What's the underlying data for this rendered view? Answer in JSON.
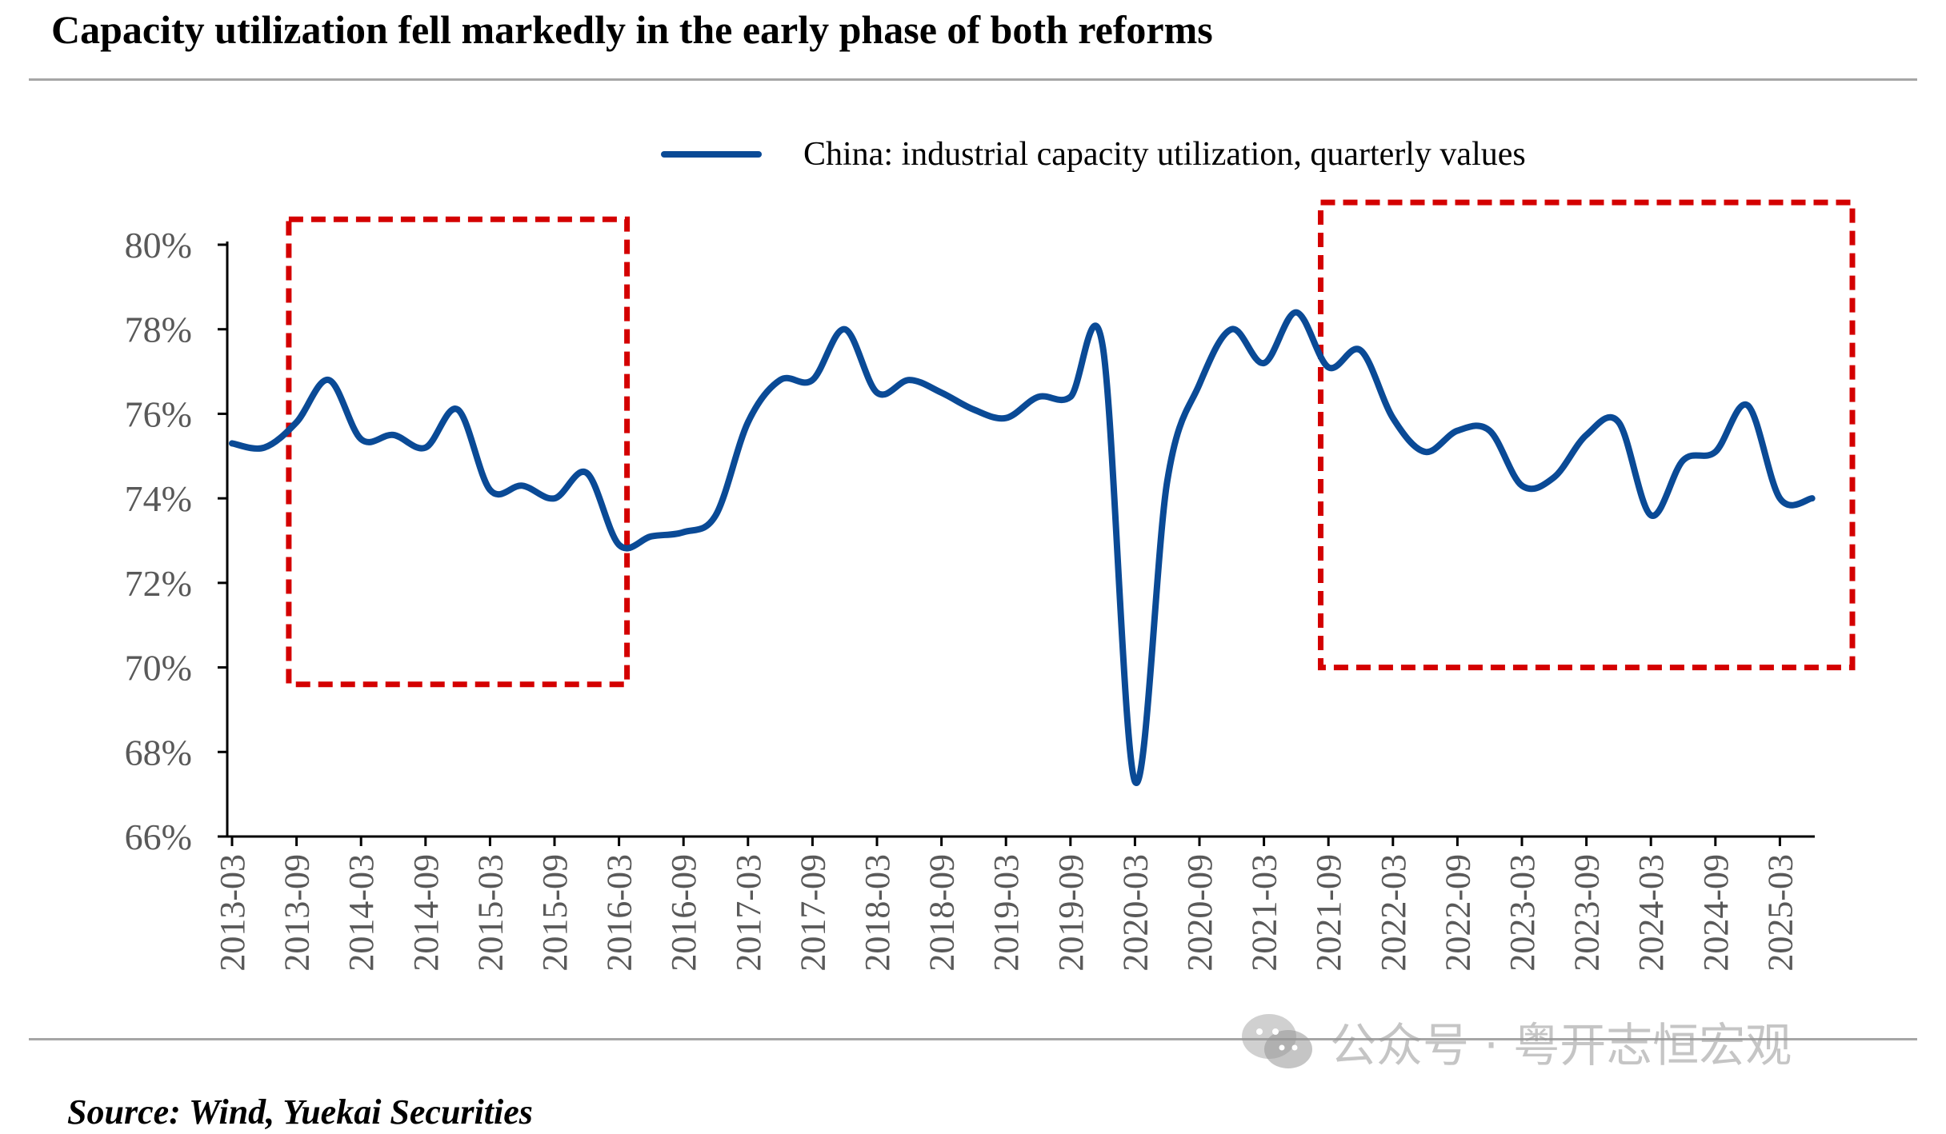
{
  "title": "Capacity utilization fell markedly in the early phase of both reforms",
  "source": "Source: Wind, Yuekai Securities",
  "watermark": {
    "icon": "wechat-icon",
    "text": "公众号 · 粤开志恒宏观"
  },
  "colors": {
    "line": "#0a4a96",
    "highlight": "#d40000",
    "axis": "#000000",
    "tick_text": "#595959"
  },
  "chart_data": {
    "type": "line",
    "ylim": [
      66,
      80
    ],
    "yticks": [
      "66%",
      "68%",
      "70%",
      "72%",
      "74%",
      "76%",
      "78%",
      "80%"
    ],
    "yticks_values": [
      66,
      68,
      70,
      72,
      74,
      76,
      78,
      80
    ],
    "xticks": [
      "2013-03",
      "2013-09",
      "2014-03",
      "2014-09",
      "2015-03",
      "2015-09",
      "2016-03",
      "2016-09",
      "2017-03",
      "2017-09",
      "2018-03",
      "2018-09",
      "2019-03",
      "2019-09",
      "2020-03",
      "2020-09",
      "2021-03",
      "2021-09",
      "2022-03",
      "2022-09",
      "2023-03",
      "2023-09",
      "2024-03",
      "2024-09",
      "2025-03"
    ],
    "legend": {
      "position": "top",
      "label": "China: industrial capacity utilization, quarterly values"
    },
    "grid": false,
    "series": [
      {
        "name": "China: industrial capacity utilization, quarterly values",
        "x": [
          "2013-03",
          "2013-06",
          "2013-09",
          "2013-12",
          "2014-03",
          "2014-06",
          "2014-09",
          "2014-12",
          "2015-03",
          "2015-06",
          "2015-09",
          "2015-12",
          "2016-03",
          "2016-06",
          "2016-09",
          "2016-12",
          "2017-03",
          "2017-06",
          "2017-09",
          "2017-12",
          "2018-03",
          "2018-06",
          "2018-09",
          "2018-12",
          "2019-03",
          "2019-06",
          "2019-09",
          "2019-12",
          "2020-03",
          "2020-06",
          "2020-09",
          "2020-12",
          "2021-03",
          "2021-06",
          "2021-09",
          "2021-12",
          "2022-03",
          "2022-06",
          "2022-09",
          "2022-12",
          "2023-03",
          "2023-06",
          "2023-09",
          "2023-12",
          "2024-03",
          "2024-06",
          "2024-09",
          "2024-12",
          "2025-03",
          "2025-06"
        ],
        "values": [
          75.3,
          75.2,
          75.8,
          76.8,
          75.4,
          75.5,
          75.2,
          76.1,
          74.2,
          74.3,
          74.0,
          74.6,
          72.9,
          73.1,
          73.2,
          73.6,
          75.8,
          76.8,
          76.8,
          78.0,
          76.5,
          76.8,
          76.5,
          76.1,
          75.9,
          76.4,
          76.4,
          77.6,
          67.3,
          74.4,
          76.7,
          78.0,
          77.2,
          78.4,
          77.1,
          77.5,
          75.9,
          75.1,
          75.6,
          75.6,
          74.3,
          74.5,
          75.5,
          75.8,
          73.6,
          74.9,
          75.1,
          76.2,
          74.0,
          74.0
        ]
      }
    ],
    "highlight_regions": [
      {
        "from": "2013-12",
        "to": "2016-03",
        "ymin": 69.6,
        "ymax": 80.6
      },
      {
        "from": "2021-12",
        "to": "2025-09",
        "ymin": 70.0,
        "ymax": 81.0
      }
    ]
  }
}
